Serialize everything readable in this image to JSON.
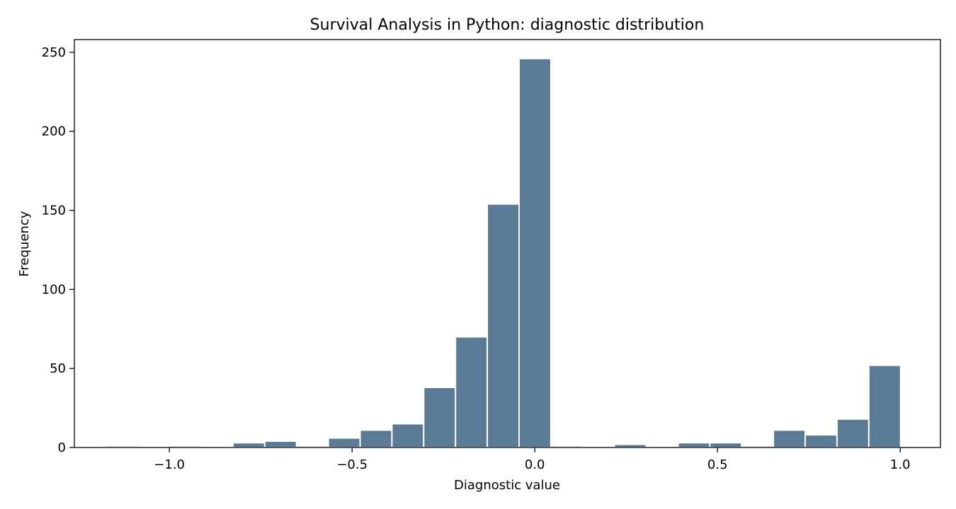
{
  "chart_data": {
    "type": "bar",
    "title": "Survival Analysis in Python: diagnostic distribution",
    "xlabel": "Diagnostic value",
    "ylabel": "Frequency",
    "xlim": [
      -1.26,
      1.11
    ],
    "ylim": [
      0,
      258
    ],
    "grid": false,
    "bar_color": "#5a7a96",
    "bar_edge_color": "#ffffff",
    "x_ticks": [
      -1.0,
      -0.5,
      0.0,
      0.5,
      1.0
    ],
    "x_tick_labels": [
      "−1.0",
      "−0.5",
      "0.0",
      "0.5",
      "1.0"
    ],
    "y_ticks": [
      0,
      50,
      100,
      150,
      200,
      250
    ],
    "y_tick_labels": [
      "0",
      "50",
      "100",
      "150",
      "200",
      "250"
    ],
    "bins": [
      {
        "x0": -1.174,
        "x1": -1.087,
        "count": 1
      },
      {
        "x0": -1.087,
        "x1": -1.0,
        "count": 0
      },
      {
        "x0": -1.0,
        "x1": -0.913,
        "count": 1
      },
      {
        "x0": -0.913,
        "x1": -0.826,
        "count": 0
      },
      {
        "x0": -0.826,
        "x1": -0.739,
        "count": 3
      },
      {
        "x0": -0.739,
        "x1": -0.652,
        "count": 4
      },
      {
        "x0": -0.652,
        "x1": -0.565,
        "count": 1
      },
      {
        "x0": -0.565,
        "x1": -0.478,
        "count": 6
      },
      {
        "x0": -0.478,
        "x1": -0.391,
        "count": 11
      },
      {
        "x0": -0.391,
        "x1": -0.304,
        "count": 15
      },
      {
        "x0": -0.304,
        "x1": -0.217,
        "count": 38
      },
      {
        "x0": -0.217,
        "x1": -0.13,
        "count": 70
      },
      {
        "x0": -0.13,
        "x1": -0.043,
        "count": 154
      },
      {
        "x0": -0.043,
        "x1": 0.044,
        "count": 246
      },
      {
        "x0": 0.044,
        "x1": 0.131,
        "count": 1
      },
      {
        "x0": 0.131,
        "x1": 0.218,
        "count": 0
      },
      {
        "x0": 0.218,
        "x1": 0.305,
        "count": 2
      },
      {
        "x0": 0.305,
        "x1": 0.392,
        "count": 0
      },
      {
        "x0": 0.392,
        "x1": 0.479,
        "count": 3
      },
      {
        "x0": 0.479,
        "x1": 0.566,
        "count": 3
      },
      {
        "x0": 0.566,
        "x1": 0.653,
        "count": 1
      },
      {
        "x0": 0.653,
        "x1": 0.74,
        "count": 11
      },
      {
        "x0": 0.74,
        "x1": 0.827,
        "count": 8
      },
      {
        "x0": 0.827,
        "x1": 0.914,
        "count": 18
      },
      {
        "x0": 0.914,
        "x1": 1.001,
        "count": 52
      }
    ]
  }
}
